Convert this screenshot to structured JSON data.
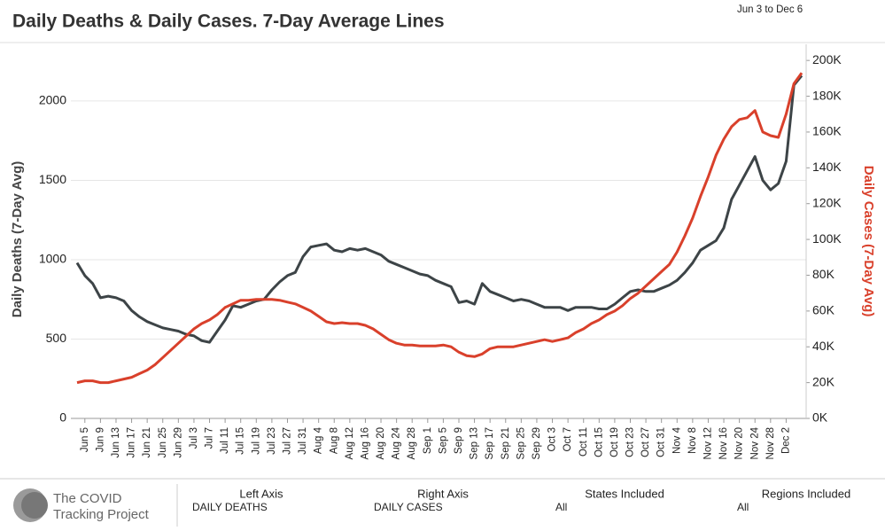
{
  "header": {
    "title": "Daily Deaths & Daily Cases. 7-Day Average Lines",
    "date_range": "Jun 3 to Dec 6"
  },
  "footer": {
    "logo_lines": [
      "The COVID",
      "Tracking Project"
    ],
    "columns": [
      {
        "label": "Left Axis",
        "value": "DAILY DEATHS"
      },
      {
        "label": "Right Axis",
        "value": "DAILY CASES"
      },
      {
        "label": "States Included",
        "value": "All"
      },
      {
        "label": "Regions Included",
        "value": "All"
      }
    ]
  },
  "chart_data": {
    "type": "line",
    "y_label": "Daily Deaths (7-Day Avg)",
    "y2_label": "Daily Cases (7-Day Avg)",
    "categories": [
      null,
      "Jun 5",
      null,
      "Jun 9",
      null,
      "Jun 13",
      null,
      "Jun 17",
      null,
      "Jun 21",
      null,
      "Jun 25",
      null,
      "Jun 29",
      null,
      "Jul 3",
      null,
      "Jul 7",
      null,
      "Jul 11",
      null,
      "Jul 15",
      null,
      "Jul 19",
      null,
      "Jul 23",
      null,
      "Jul 27",
      null,
      "Jul 31",
      null,
      "Aug 4",
      null,
      "Aug 8",
      null,
      "Aug 12",
      null,
      "Aug 16",
      null,
      "Aug 20",
      null,
      "Aug 24",
      null,
      "Aug 28",
      null,
      "Sep 1",
      null,
      "Sep 5",
      null,
      "Sep 9",
      null,
      "Sep 13",
      null,
      "Sep 17",
      null,
      "Sep 21",
      null,
      "Sep 25",
      null,
      "Sep 29",
      null,
      "Oct 3",
      null,
      "Oct 7",
      null,
      "Oct 11",
      null,
      "Oct 15",
      null,
      "Oct 19",
      null,
      "Oct 23",
      null,
      "Oct 27",
      null,
      "Oct 31",
      null,
      "Nov 4",
      null,
      "Nov 8",
      null,
      "Nov 12",
      null,
      "Nov 16",
      null,
      "Nov 20",
      null,
      "Nov 24",
      null,
      "Nov 28",
      null,
      "Dec 2",
      null,
      null
    ],
    "series": [
      {
        "name": "Daily Deaths",
        "color": "#3d4447",
        "axis": "y",
        "values": [
          980,
          900,
          850,
          760,
          770,
          760,
          740,
          680,
          640,
          610,
          590,
          570,
          560,
          550,
          530,
          520,
          490,
          480,
          550,
          620,
          710,
          700,
          720,
          740,
          750,
          810,
          860,
          900,
          920,
          1020,
          1080,
          1090,
          1100,
          1060,
          1050,
          1070,
          1060,
          1070,
          1050,
          1030,
          990,
          970,
          950,
          930,
          910,
          900,
          870,
          850,
          830,
          730,
          740,
          720,
          850,
          800,
          780,
          760,
          740,
          750,
          740,
          720,
          700,
          700,
          700,
          680,
          700,
          700,
          700,
          690,
          690,
          720,
          760,
          800,
          810,
          800,
          800,
          820,
          840,
          870,
          920,
          980,
          1060,
          1090,
          1120,
          1200,
          1380,
          1470,
          1560,
          1650,
          1500,
          1440,
          1480,
          1620,
          2100,
          2160
        ]
      },
      {
        "name": "Daily Cases",
        "color": "#d9402b",
        "axis": "y2",
        "values": [
          20000,
          21000,
          21000,
          20000,
          20000,
          21000,
          22000,
          23000,
          25000,
          27000,
          30000,
          34000,
          38000,
          42000,
          46000,
          50000,
          53000,
          55000,
          58000,
          62000,
          64000,
          66000,
          66000,
          66500,
          66500,
          66500,
          66000,
          65000,
          64000,
          62000,
          60000,
          57000,
          54000,
          53000,
          53500,
          53000,
          53000,
          52000,
          50000,
          47000,
          44000,
          42000,
          41000,
          41000,
          40500,
          40500,
          40500,
          41000,
          40000,
          37000,
          35000,
          34500,
          36000,
          39000,
          40000,
          40000,
          40000,
          41000,
          42000,
          43000,
          44000,
          43000,
          44000,
          45000,
          48000,
          50000,
          53000,
          55000,
          58000,
          60000,
          63000,
          67000,
          70000,
          74000,
          78000,
          82000,
          86000,
          93000,
          102000,
          112000,
          124000,
          135000,
          147000,
          156000,
          163000,
          167000,
          168000,
          172000,
          160000,
          158000,
          157000,
          170000,
          187000,
          193000
        ]
      }
    ],
    "ylim": [
      0,
      2357
    ],
    "yticks": [
      0,
      500,
      1000,
      1500,
      2000
    ],
    "y2lim": [
      0,
      209000
    ],
    "y2ticks": [
      {
        "value": 0,
        "label": "0K"
      },
      {
        "value": 20000,
        "label": "20K"
      },
      {
        "value": 40000,
        "label": "40K"
      },
      {
        "value": 60000,
        "label": "60K"
      },
      {
        "value": 80000,
        "label": "80K"
      },
      {
        "value": 100000,
        "label": "100K"
      },
      {
        "value": 120000,
        "label": "120K"
      },
      {
        "value": 140000,
        "label": "140K"
      },
      {
        "value": 160000,
        "label": "160K"
      },
      {
        "value": 180000,
        "label": "180K"
      },
      {
        "value": 200000,
        "label": "200K"
      }
    ],
    "grid": true
  }
}
